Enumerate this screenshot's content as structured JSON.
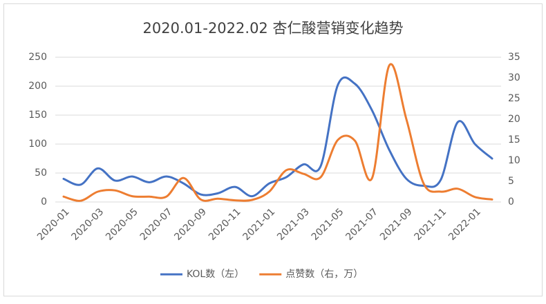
{
  "chart_data": {
    "type": "line",
    "title": "2020.01-2022.02 杏仁酸营销变化趋势",
    "categories": [
      "2020-01",
      null,
      "2020-03",
      null,
      "2020-05",
      null,
      "2020-07",
      null,
      "2020-09",
      null,
      "2020-11",
      null,
      "2021-01",
      null,
      "2021-03",
      null,
      "2021-05",
      null,
      "2021-07",
      null,
      "2021-09",
      null,
      "2021-11",
      null,
      "2022-01",
      null
    ],
    "series": [
      {
        "name": "KOL数（左）",
        "color": "#4472c4",
        "values": [
          40,
          30,
          58,
          37,
          44,
          34,
          44,
          32,
          13,
          15,
          26,
          10,
          32,
          43,
          65,
          62,
          202,
          204,
          158,
          90,
          40,
          28,
          38,
          138,
          100,
          75
        ]
      },
      {
        "name": "点赞数（右，万）",
        "color": "#ed7d31",
        "axis": "y2",
        "values": [
          1.3,
          0.3,
          2.5,
          2.8,
          1.4,
          1.3,
          1.3,
          5.8,
          0.6,
          0.8,
          0.4,
          0.5,
          2.5,
          7.7,
          6.8,
          6.0,
          15,
          14.8,
          5.8,
          33,
          20,
          4.5,
          2.5,
          3.2,
          1.2,
          0.6
        ]
      }
    ],
    "ylim": [
      0,
      250
    ],
    "yticks": [
      0,
      50,
      100,
      150,
      200,
      250
    ],
    "y2lim": [
      0,
      35
    ],
    "y2ticks": [
      0,
      5,
      10,
      15,
      20,
      25,
      30,
      35
    ],
    "grid": true,
    "legend": "bottom"
  }
}
